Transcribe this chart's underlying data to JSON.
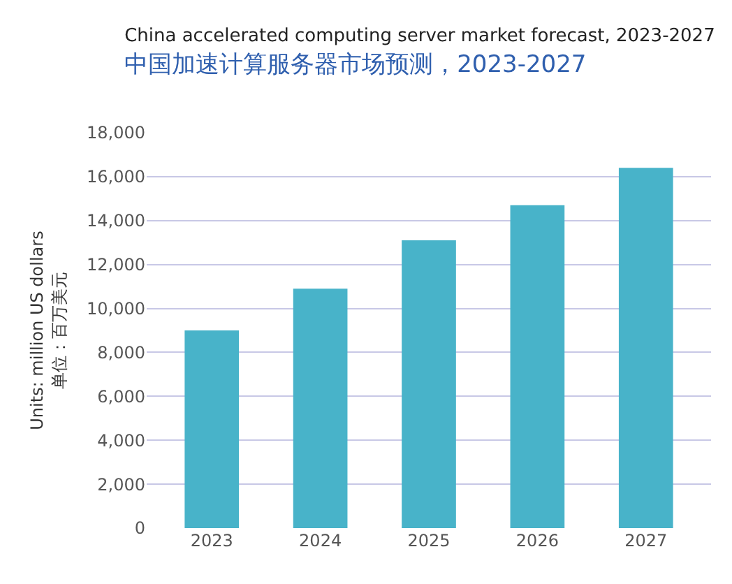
{
  "chart_data": {
    "type": "bar",
    "title": "China accelerated computing server market forecast, 2023-2027",
    "subtitle": "中国加速计算服务器市场预测，2023-2027",
    "ylabel": "Units: million US dollars\n单位：百万美元",
    "categories": [
      "2023",
      "2024",
      "2025",
      "2026",
      "2027"
    ],
    "values": [
      9000,
      10900,
      13100,
      14700,
      16400
    ],
    "color": "#48b3c9",
    "ylim": [
      0,
      18000
    ],
    "yticks": [
      {
        "value": 0,
        "label": "0"
      },
      {
        "value": 2000,
        "label": "2,000"
      },
      {
        "value": 4000,
        "label": "4,000"
      },
      {
        "value": 6000,
        "label": "6,000"
      },
      {
        "value": 8000,
        "label": "8,000"
      },
      {
        "value": 10000,
        "label": "10,000"
      },
      {
        "value": 12000,
        "label": "12,000"
      },
      {
        "value": 14000,
        "label": "14,000"
      },
      {
        "value": 16000,
        "label": "16,000"
      },
      {
        "value": 18000,
        "label": "18,000"
      }
    ],
    "grid": "y"
  }
}
